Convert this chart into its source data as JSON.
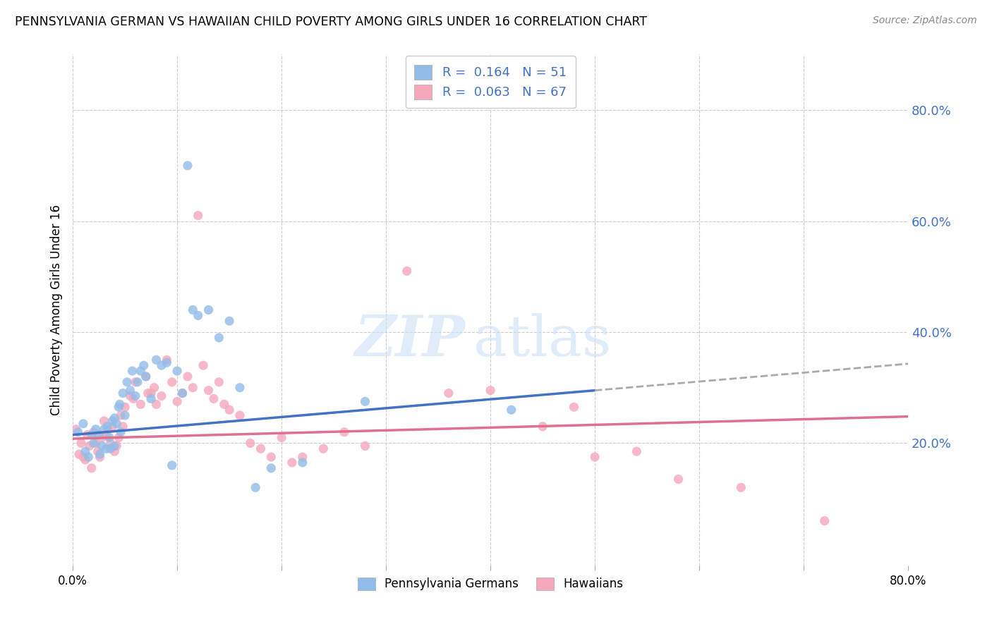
{
  "title": "PENNSYLVANIA GERMAN VS HAWAIIAN CHILD POVERTY AMONG GIRLS UNDER 16 CORRELATION CHART",
  "source": "Source: ZipAtlas.com",
  "ylabel": "Child Poverty Among Girls Under 16",
  "legend_label_1": "Pennsylvania Germans",
  "legend_label_2": "Hawaiians",
  "r1": "0.164",
  "n1": "51",
  "r2": "0.063",
  "n2": "67",
  "color_blue": "#92bce8",
  "color_pink": "#f5a8bc",
  "color_blue_text": "#4472c4",
  "color_line_blue": "#4472c4",
  "color_line_pink": "#e07090",
  "color_dashed": "#aaaaaa",
  "xlim": [
    0.0,
    0.8
  ],
  "ylim": [
    -0.02,
    0.9
  ],
  "yticks": [
    0.2,
    0.4,
    0.6,
    0.8
  ],
  "ytick_labels": [
    "20.0%",
    "40.0%",
    "60.0%",
    "80.0%"
  ],
  "watermark_zip": "ZIP",
  "watermark_atlas": "atlas",
  "pg_x": [
    0.005,
    0.01,
    0.012,
    0.015,
    0.018,
    0.02,
    0.022,
    0.025,
    0.026,
    0.028,
    0.03,
    0.032,
    0.033,
    0.035,
    0.036,
    0.038,
    0.04,
    0.04,
    0.042,
    0.044,
    0.045,
    0.046,
    0.048,
    0.05,
    0.052,
    0.055,
    0.057,
    0.06,
    0.062,
    0.065,
    0.068,
    0.07,
    0.075,
    0.08,
    0.085,
    0.09,
    0.095,
    0.1,
    0.105,
    0.11,
    0.115,
    0.12,
    0.13,
    0.14,
    0.15,
    0.16,
    0.175,
    0.19,
    0.22,
    0.28,
    0.42
  ],
  "pg_y": [
    0.22,
    0.235,
    0.185,
    0.175,
    0.215,
    0.2,
    0.225,
    0.215,
    0.18,
    0.195,
    0.225,
    0.19,
    0.23,
    0.21,
    0.19,
    0.24,
    0.195,
    0.245,
    0.235,
    0.265,
    0.27,
    0.22,
    0.29,
    0.25,
    0.31,
    0.295,
    0.33,
    0.285,
    0.31,
    0.33,
    0.34,
    0.32,
    0.28,
    0.35,
    0.34,
    0.345,
    0.16,
    0.33,
    0.29,
    0.7,
    0.44,
    0.43,
    0.44,
    0.39,
    0.42,
    0.3,
    0.12,
    0.155,
    0.165,
    0.275,
    0.26
  ],
  "hw_x": [
    0.003,
    0.006,
    0.008,
    0.01,
    0.012,
    0.014,
    0.016,
    0.018,
    0.02,
    0.022,
    0.024,
    0.026,
    0.028,
    0.03,
    0.032,
    0.034,
    0.036,
    0.038,
    0.04,
    0.042,
    0.044,
    0.046,
    0.048,
    0.05,
    0.055,
    0.058,
    0.06,
    0.065,
    0.07,
    0.072,
    0.075,
    0.078,
    0.08,
    0.085,
    0.09,
    0.095,
    0.1,
    0.105,
    0.11,
    0.115,
    0.12,
    0.125,
    0.13,
    0.135,
    0.14,
    0.145,
    0.15,
    0.16,
    0.17,
    0.18,
    0.19,
    0.2,
    0.21,
    0.22,
    0.24,
    0.26,
    0.28,
    0.32,
    0.36,
    0.4,
    0.45,
    0.48,
    0.5,
    0.54,
    0.58,
    0.64,
    0.72
  ],
  "hw_y": [
    0.225,
    0.18,
    0.2,
    0.175,
    0.17,
    0.215,
    0.195,
    0.155,
    0.22,
    0.2,
    0.185,
    0.175,
    0.21,
    0.24,
    0.215,
    0.225,
    0.2,
    0.23,
    0.185,
    0.195,
    0.21,
    0.25,
    0.23,
    0.265,
    0.285,
    0.28,
    0.31,
    0.27,
    0.32,
    0.29,
    0.29,
    0.3,
    0.27,
    0.285,
    0.35,
    0.31,
    0.275,
    0.29,
    0.32,
    0.3,
    0.61,
    0.34,
    0.295,
    0.28,
    0.31,
    0.27,
    0.26,
    0.25,
    0.2,
    0.19,
    0.175,
    0.21,
    0.165,
    0.175,
    0.19,
    0.22,
    0.195,
    0.51,
    0.29,
    0.295,
    0.23,
    0.265,
    0.175,
    0.185,
    0.135,
    0.12,
    0.06
  ],
  "trend_blue_x0": 0.0,
  "trend_blue_y0": 0.215,
  "trend_blue_x1": 0.5,
  "trend_blue_y1": 0.295,
  "trend_dash_x0": 0.5,
  "trend_dash_y0": 0.295,
  "trend_dash_x1": 0.8,
  "trend_dash_y1": 0.343,
  "trend_pink_x0": 0.0,
  "trend_pink_y0": 0.208,
  "trend_pink_x1": 0.8,
  "trend_pink_y1": 0.248
}
